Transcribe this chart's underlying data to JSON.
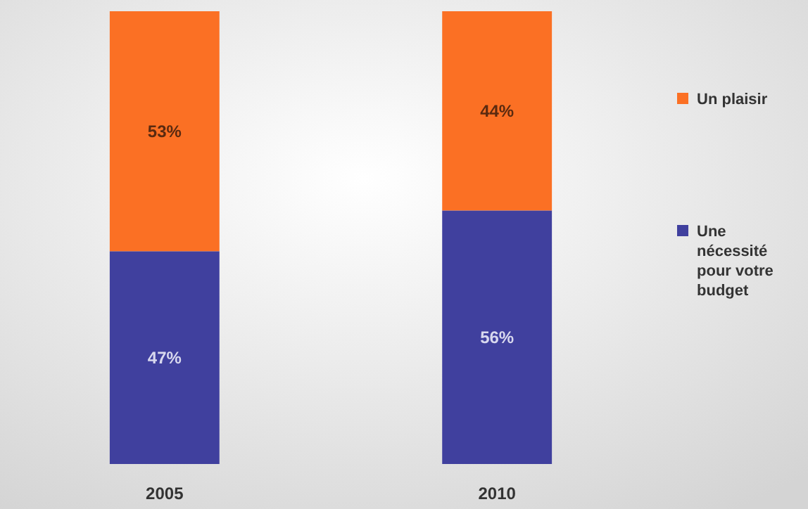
{
  "chart_data": {
    "type": "bar",
    "stacked": true,
    "categories": [
      "2005",
      "2010"
    ],
    "series": [
      {
        "name": "Une nécessité pour votre budget",
        "color": "#40409e",
        "values": [
          47,
          56
        ],
        "value_labels": [
          "47%",
          "56%"
        ]
      },
      {
        "name": "Un plaisir",
        "color": "#fb7024",
        "values": [
          53,
          44
        ],
        "value_labels": [
          "53%",
          "44%"
        ]
      }
    ],
    "legend": "right"
  }
}
